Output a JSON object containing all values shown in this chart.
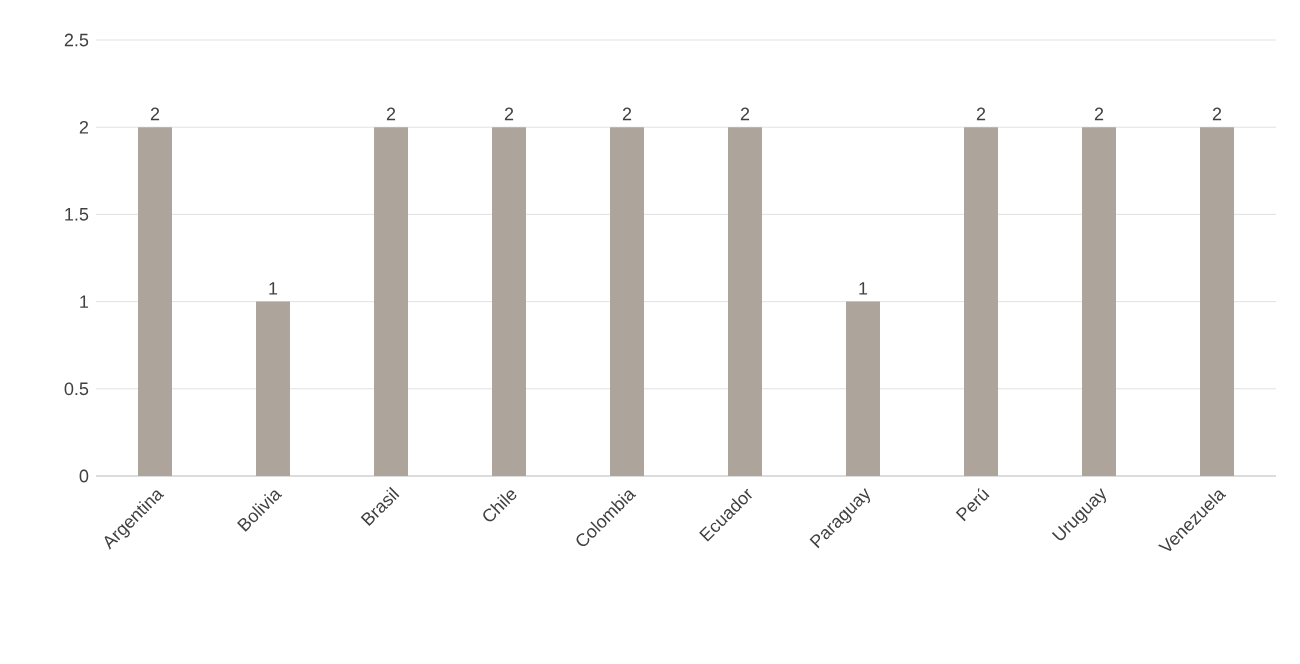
{
  "chart_data": {
    "type": "bar",
    "categories": [
      "Argentina",
      "Bolivia",
      "Brasil",
      "Chile",
      "Colombia",
      "Ecuador",
      "Paraguay",
      "Perú",
      "Uruguay",
      "Venezuela"
    ],
    "values": [
      2,
      1,
      2,
      2,
      2,
      2,
      1,
      2,
      2,
      2
    ],
    "color": "#ada49c",
    "ylim": [
      0,
      2.5
    ],
    "yticks": [
      0,
      0.5,
      1,
      1.5,
      2,
      2.5
    ],
    "grid": "y",
    "data_labels": true
  }
}
